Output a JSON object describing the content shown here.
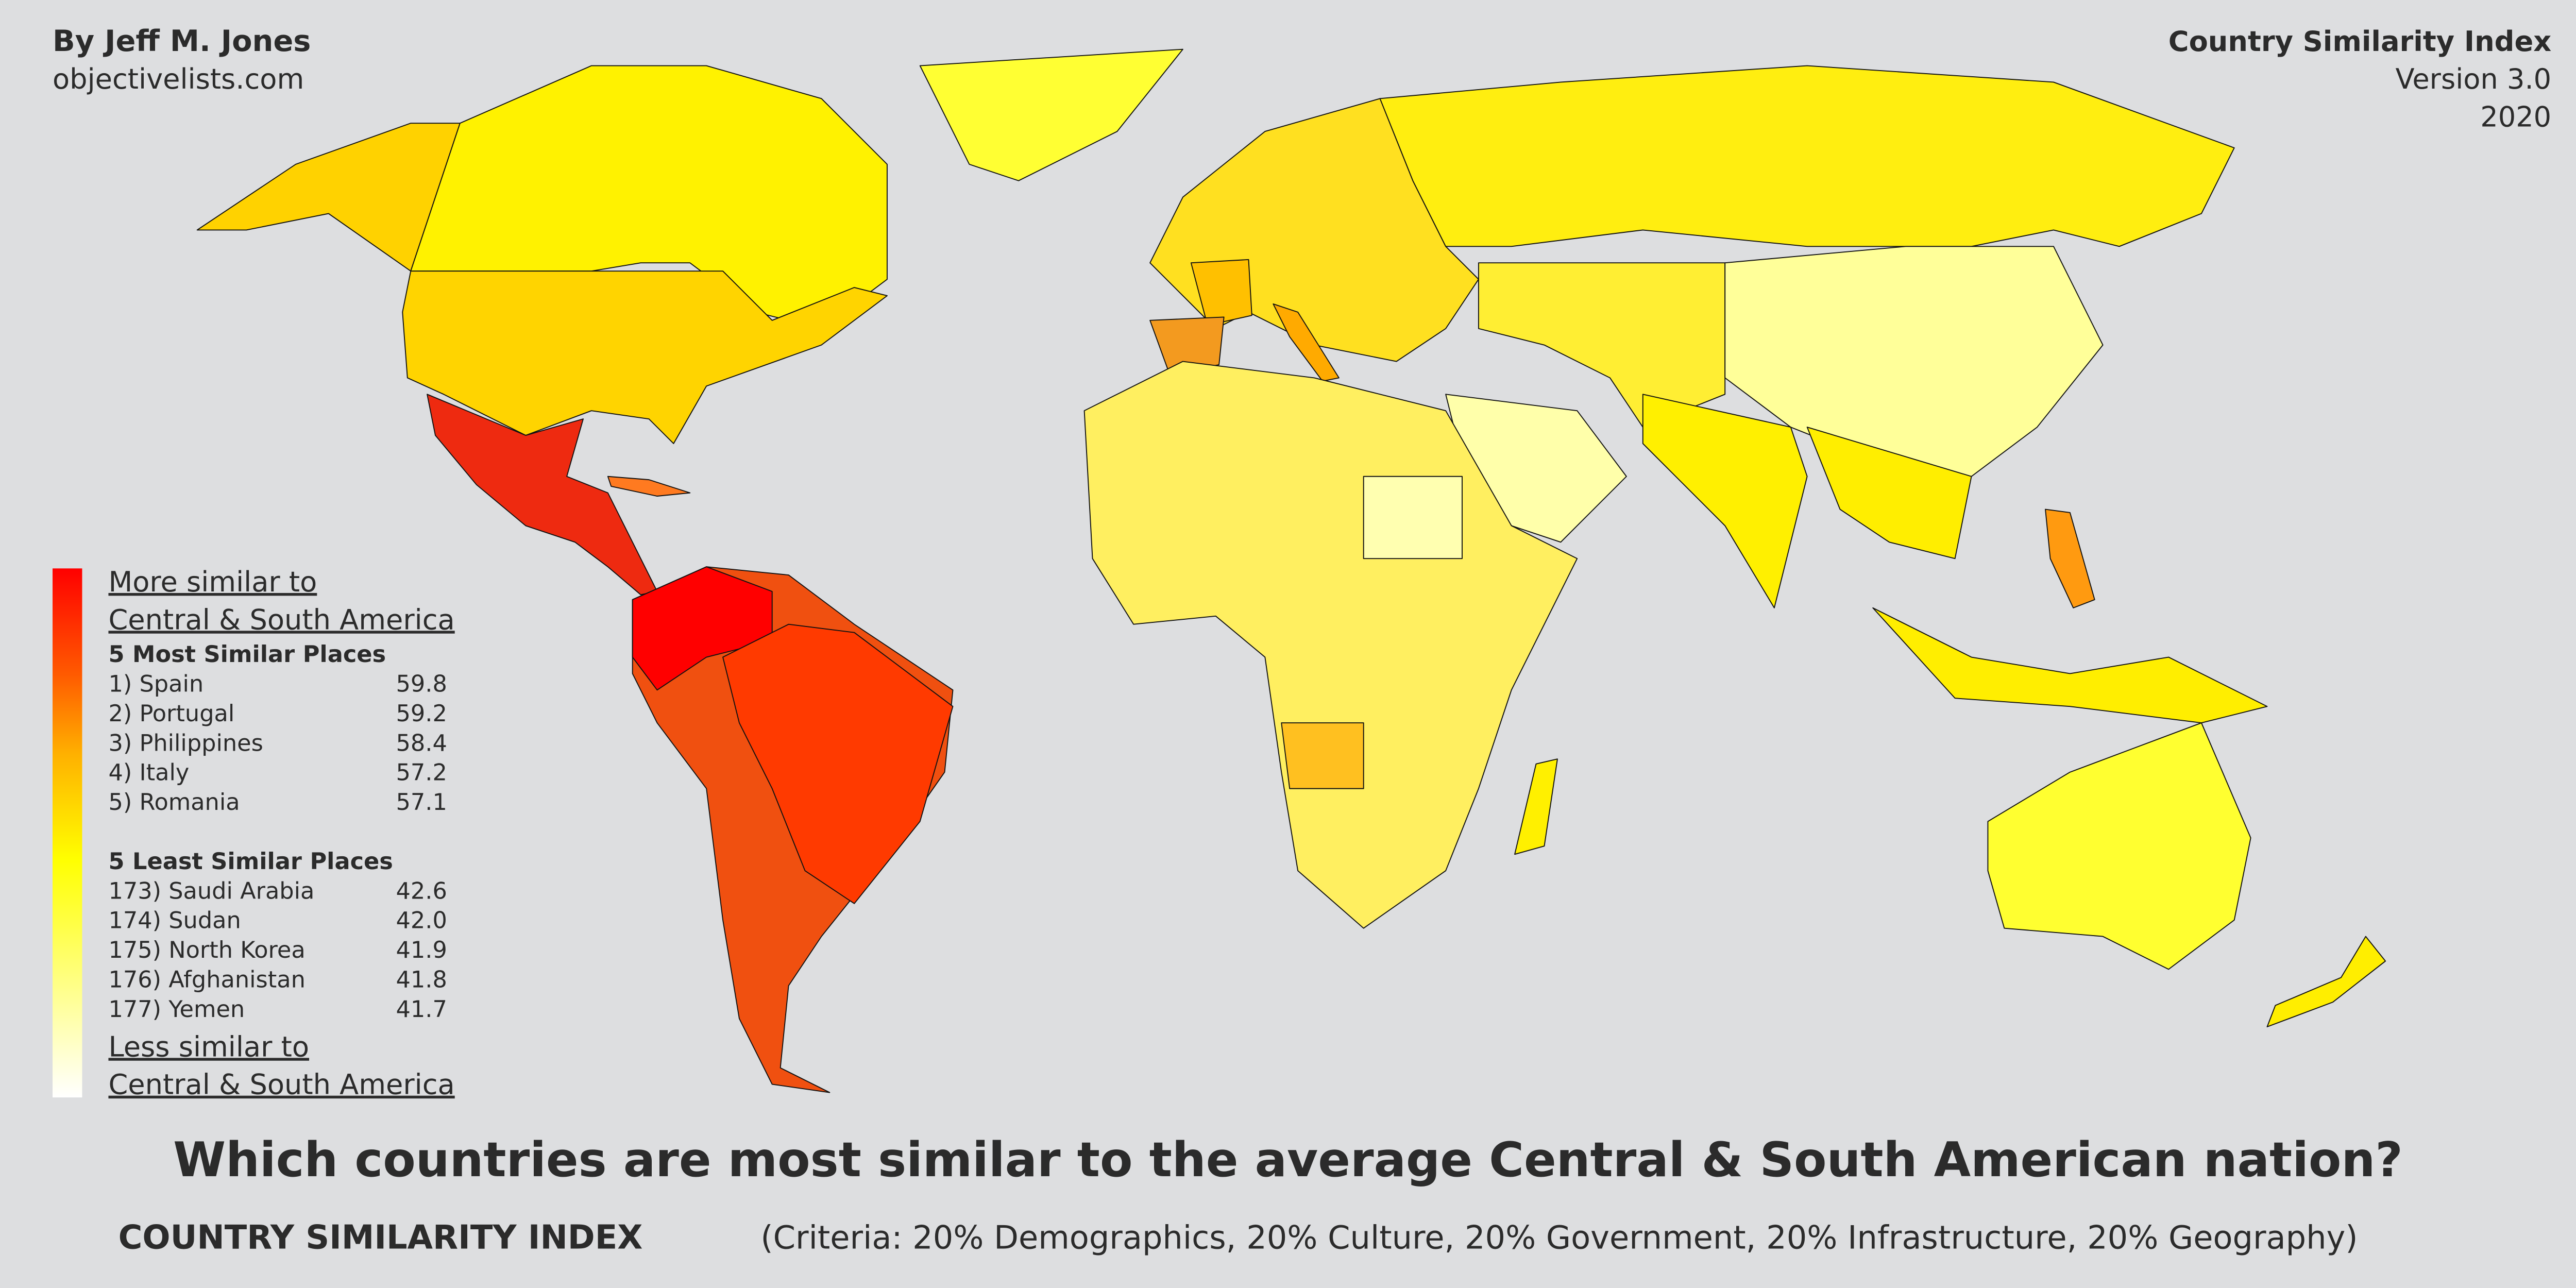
{
  "header": {
    "author": "By Jeff M. Jones",
    "site": "objectivelists.com"
  },
  "title_block": {
    "title": "Country Similarity Index",
    "version": "Version 3.0",
    "year": "2020"
  },
  "legend": {
    "top_label": [
      "More similar to",
      "Central & South America"
    ],
    "most_similar": {
      "heading": "5 Most Similar Places",
      "rows": [
        [
          "1) Spain",
          "59.8"
        ],
        [
          "2) Portugal",
          "59.2"
        ],
        [
          "3) Philippines",
          "58.4"
        ],
        [
          "4) Italy",
          "57.2"
        ],
        [
          "5) Romania",
          "57.1"
        ]
      ]
    },
    "least_similar": {
      "heading": "5 Least Similar Places",
      "rows": [
        [
          "173) Saudi Arabia",
          "42.6"
        ],
        [
          "174) Sudan",
          "42.0"
        ],
        [
          "175) North Korea",
          "41.9"
        ],
        [
          "176) Afghanistan",
          "41.8"
        ],
        [
          "177) Yemen",
          "41.7"
        ]
      ]
    },
    "bottom_label": [
      "Less similar to",
      "Central & South America"
    ]
  },
  "main_title": "Which countries are most similar to the average Central & South American nation?",
  "footer": {
    "brand": "COUNTRY SIMILARITY INDEX",
    "criteria": "(Criteria: 20% Demographics, 20% Culture, 20% Government, 20% Infrastructure, 20% Geography)"
  }
}
